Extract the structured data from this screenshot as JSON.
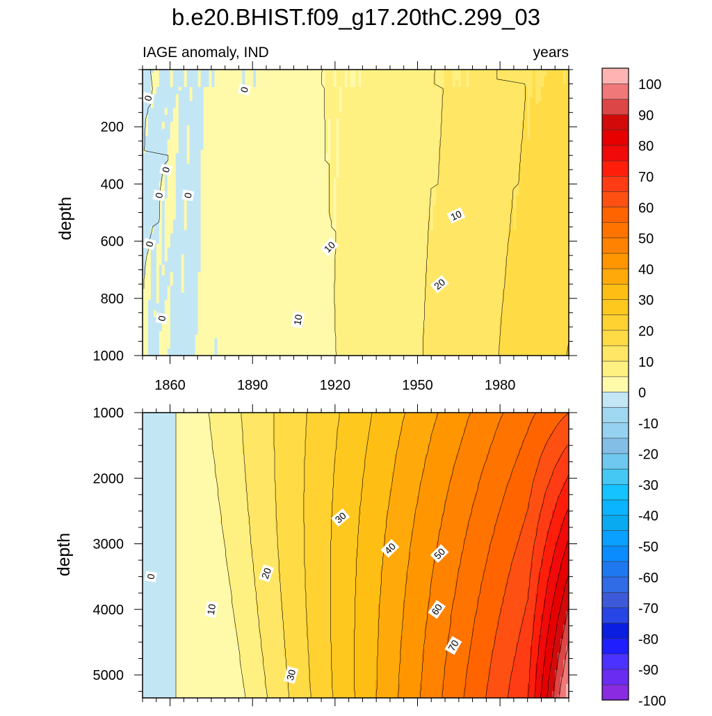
{
  "title": "b.e20.BHIST.f09_g17.20thC.299_03",
  "chart_data": {
    "type": "contour",
    "title": "b.e20.BHIST.f09_g17.20thC.299_03",
    "variable_label": "IAGE anomaly, IND",
    "units_label": "years",
    "x_range": [
      1850,
      2005
    ],
    "x_ticks": [
      1860,
      1890,
      1920,
      1950,
      1980
    ],
    "x_tick_labels": [
      "1860",
      "1890",
      "1920",
      "1950",
      "1980"
    ],
    "panels": [
      {
        "id": "upper",
        "ylabel": "depth",
        "depth_range": [
          0,
          1000
        ],
        "y_ticks": [
          200,
          400,
          600,
          800,
          1000
        ],
        "y_tick_labels": [
          "200",
          "400",
          "600",
          "800",
          "1000"
        ],
        "contour_labels": [
          {
            "text": "0",
            "year": 1852.0,
            "depth": 100,
            "angle": -75
          },
          {
            "text": "0",
            "year": 1887.0,
            "depth": 70,
            "angle": -75
          },
          {
            "text": "0",
            "year": 1858.5,
            "depth": 350,
            "angle": -75
          },
          {
            "text": "0",
            "year": 1856.0,
            "depth": 440,
            "angle": -80
          },
          {
            "text": "0",
            "year": 1866.5,
            "depth": 440,
            "angle": -80
          },
          {
            "text": "0",
            "year": 1852.5,
            "depth": 610,
            "angle": -75
          },
          {
            "text": "0",
            "year": 1857.0,
            "depth": 870,
            "angle": -80
          },
          {
            "text": "10",
            "year": 1906.5,
            "depth": 875,
            "angle": -80
          },
          {
            "text": "10",
            "year": 1918.0,
            "depth": 620,
            "angle": -45
          },
          {
            "text": "10",
            "year": 1964.0,
            "depth": 510,
            "angle": -25
          },
          {
            "text": "20",
            "year": 1958.0,
            "depth": 750,
            "angle": -40
          }
        ]
      },
      {
        "id": "lower",
        "ylabel": "depth",
        "depth_range": [
          1000,
          5350
        ],
        "y_ticks": [
          1000,
          2000,
          3000,
          4000,
          5000
        ],
        "y_tick_labels": [
          "1000",
          "2000",
          "3000",
          "4000",
          "5000"
        ],
        "contour_labels": [
          {
            "text": "0",
            "year": 1853.0,
            "depth": 3500,
            "angle": -80
          },
          {
            "text": "10",
            "year": 1875.0,
            "depth": 4000,
            "angle": -80
          },
          {
            "text": "20",
            "year": 1895.0,
            "depth": 3450,
            "angle": -70
          },
          {
            "text": "30",
            "year": 1904.0,
            "depth": 5000,
            "angle": -75
          },
          {
            "text": "30",
            "year": 1922.0,
            "depth": 2600,
            "angle": -40
          },
          {
            "text": "40",
            "year": 1940.0,
            "depth": 3070,
            "angle": -45
          },
          {
            "text": "50",
            "year": 1958.0,
            "depth": 3150,
            "angle": -45
          },
          {
            "text": "60",
            "year": 1957.0,
            "depth": 4000,
            "angle": -55
          },
          {
            "text": "70",
            "year": 1963.0,
            "depth": 4550,
            "angle": -60
          }
        ]
      }
    ],
    "colorbar": {
      "levels": [
        -100,
        -95,
        -90,
        -85,
        -80,
        -75,
        -70,
        -65,
        -60,
        -55,
        -50,
        -45,
        -40,
        -35,
        -30,
        -25,
        -20,
        -15,
        -10,
        -5,
        0,
        5,
        10,
        15,
        20,
        25,
        30,
        35,
        40,
        45,
        50,
        55,
        60,
        65,
        70,
        75,
        80,
        85,
        90,
        95,
        100
      ],
      "label_values": [
        "100",
        "90",
        "80",
        "70",
        "60",
        "50",
        "40",
        "30",
        "20",
        "10",
        "0",
        "-10",
        "-20",
        "-30",
        "-40",
        "-50",
        "-60",
        "-70",
        "-80",
        "-90",
        "-100"
      ],
      "colors_bottom_to_top": [
        "#8a2be2",
        "#6a2cf0",
        "#4b32ff",
        "#1e1eff",
        "#0a1ee0",
        "#2846e6",
        "#3c5ad8",
        "#2f6ce6",
        "#1e78f0",
        "#0a8cff",
        "#0aa0ff",
        "#0aaaf0",
        "#0ab4ff",
        "#14c3ff",
        "#46c8f5",
        "#6ec8f0",
        "#82bee6",
        "#96d2f0",
        "#a0d7f0",
        "#c3e6f5",
        "#fffaaa",
        "#fff082",
        "#ffe664",
        "#ffdc46",
        "#ffd232",
        "#ffc81e",
        "#ffbe14",
        "#ffaa0a",
        "#ff9600",
        "#ff8200",
        "#ff7300",
        "#ff6400",
        "#ff5014",
        "#ff3c14",
        "#ff1e0a",
        "#f00a0a",
        "#e60000",
        "#d20a0a",
        "#dc4646",
        "#f07878",
        "#ffb4b4"
      ]
    }
  }
}
